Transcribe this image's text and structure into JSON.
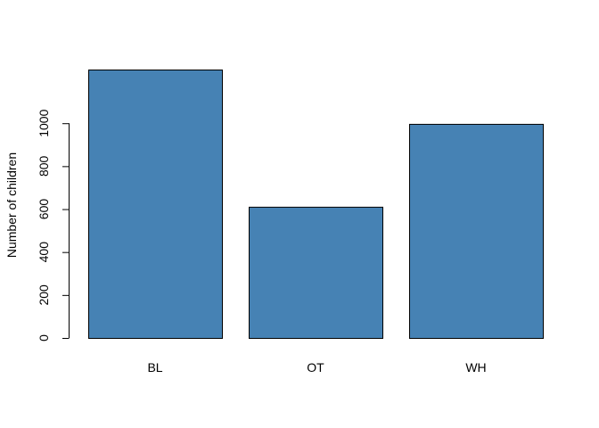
{
  "chart_data": {
    "type": "bar",
    "categories": [
      "BL",
      "OT",
      "WH"
    ],
    "values": [
      1250,
      611,
      997
    ],
    "ylabel": "Number of children",
    "xlabel": "",
    "title": "",
    "ylim": [
      0,
      1250
    ],
    "yticks": [
      0,
      200,
      400,
      600,
      800,
      1000
    ],
    "bar_color": "#4682B4",
    "border_color": "#000000",
    "grid": false,
    "legend": "none"
  }
}
